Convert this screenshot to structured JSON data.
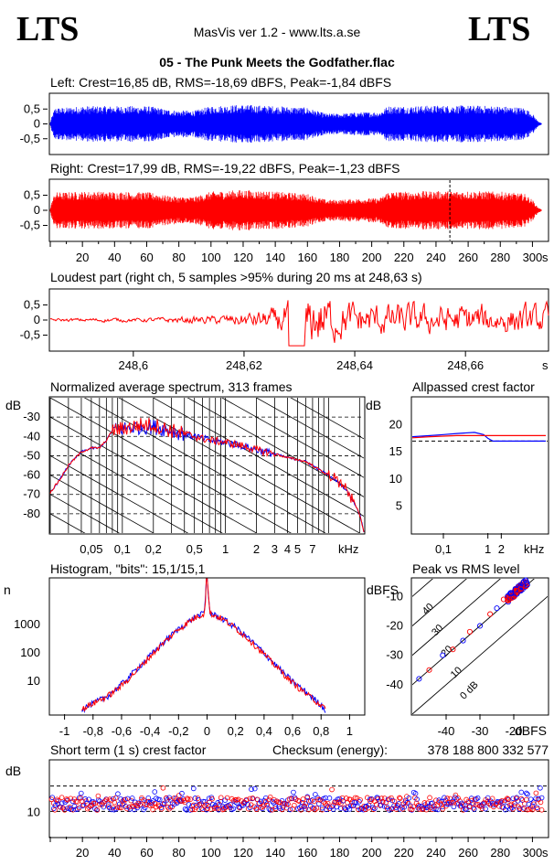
{
  "header": {
    "logo_left": "LTS",
    "logo_right": "LTS",
    "app_title": "MasVis ver 1.2 - www.lts.a.se",
    "file_title": "05 - The Punk Meets the Godfather.flac"
  },
  "colors": {
    "left": "#0000ff",
    "right": "#ff0000",
    "grid": "#000000"
  },
  "chart_data": [
    {
      "id": "left",
      "type": "line",
      "title": "Left: Crest=16,85 dB, RMS=-18,69 dBFS, Peak=-1,84 dBFS",
      "xlim": [
        0,
        310
      ],
      "ylim": [
        -1,
        1
      ],
      "y_ticks": [
        "0,5",
        "0",
        "-0,5"
      ],
      "envelope": {
        "t": [
          0,
          1,
          3,
          10,
          20,
          40,
          60,
          68,
          70,
          80,
          90,
          100,
          120,
          140,
          160,
          168,
          172,
          180,
          195,
          205,
          210,
          220,
          240,
          260,
          280,
          295,
          300,
          303,
          305,
          306
        ],
        "peak": [
          0.05,
          0.25,
          0.55,
          0.55,
          0.6,
          0.6,
          0.6,
          0.55,
          0.5,
          0.45,
          0.45,
          0.6,
          0.65,
          0.6,
          0.55,
          0.4,
          0.35,
          0.35,
          0.4,
          0.4,
          0.6,
          0.6,
          0.62,
          0.62,
          0.6,
          0.55,
          0.35,
          0.12,
          0.05,
          0.0
        ]
      }
    },
    {
      "id": "right",
      "type": "line",
      "title": "Right: Crest=17,99 dB, RMS=-19,22 dBFS, Peak=-1,23 dBFS",
      "xlim": [
        0,
        310
      ],
      "ylim": [
        -1,
        1
      ],
      "y_ticks": [
        "0,5",
        "0",
        "-0,5"
      ],
      "marker_s": 248.63,
      "x_ticks": [
        "20",
        "40",
        "60",
        "80",
        "100",
        "120",
        "140",
        "160",
        "180",
        "200",
        "220",
        "240",
        "260",
        "280",
        "300"
      ],
      "x_unit": "s",
      "envelope": {
        "t": [
          0,
          1,
          3,
          10,
          20,
          40,
          60,
          68,
          70,
          80,
          90,
          100,
          120,
          140,
          160,
          168,
          172,
          180,
          195,
          205,
          210,
          220,
          240,
          260,
          280,
          295,
          300,
          303,
          305,
          306
        ],
        "peak": [
          0.05,
          0.3,
          0.6,
          0.6,
          0.62,
          0.62,
          0.6,
          0.55,
          0.5,
          0.45,
          0.45,
          0.62,
          0.68,
          0.62,
          0.55,
          0.4,
          0.35,
          0.35,
          0.4,
          0.4,
          0.62,
          0.62,
          0.64,
          0.64,
          0.62,
          0.55,
          0.35,
          0.12,
          0.05,
          0.0
        ]
      }
    },
    {
      "id": "loudest",
      "type": "line",
      "title": "Loudest part (right ch, 5 samples >95% during 20 ms at 248,63 s)",
      "xlim": [
        248.585,
        248.675
      ],
      "ylim": [
        -1,
        1
      ],
      "y_ticks": [
        "0,5",
        "0",
        "-0,5"
      ],
      "x_tick_values": [
        248.6,
        248.62,
        248.64,
        248.66
      ],
      "x_ticks": [
        "248,6",
        "248,62",
        "248,64",
        "248,66"
      ],
      "x_unit": "s",
      "shape": {
        "t": [
          248.585,
          248.59,
          248.595,
          248.6,
          248.605,
          248.61,
          248.615,
          248.62,
          248.625,
          248.628,
          248.63,
          248.632,
          248.634,
          248.636,
          248.638,
          248.64,
          248.645,
          248.65,
          248.655,
          248.66,
          248.665,
          248.67,
          248.675
        ],
        "amp": [
          0.04,
          0.05,
          0.06,
          0.05,
          0.07,
          0.1,
          0.12,
          0.2,
          0.3,
          0.5,
          0.6,
          0.7,
          0.8,
          0.6,
          0.5,
          0.5,
          0.45,
          0.45,
          0.4,
          0.45,
          0.4,
          0.4,
          0.4
        ]
      }
    },
    {
      "id": "spectrum",
      "type": "line",
      "title": "Normalized average spectrum, 313 frames",
      "y_unit": "dB",
      "ylim": [
        -90,
        -20
      ],
      "y_ticks": [
        -30,
        -40,
        -50,
        -60,
        -70,
        -80
      ],
      "x_unit": "kHz",
      "xlim_khz": [
        0.02,
        22
      ],
      "x_tick_values": [
        0.05,
        0.1,
        0.2,
        0.5,
        1,
        2,
        3,
        4,
        5,
        7
      ],
      "x_ticks": [
        "0,05",
        "0,1",
        "0,2",
        "0,5",
        "1",
        "2",
        "3",
        "4",
        "5",
        "7"
      ],
      "series": [
        {
          "color": "#0000ff",
          "khz": [
            0.02,
            0.025,
            0.03,
            0.04,
            0.05,
            0.06,
            0.07,
            0.08,
            0.1,
            0.15,
            0.2,
            0.3,
            0.5,
            0.7,
            1,
            1.5,
            2,
            3,
            4,
            5,
            6,
            7,
            8,
            10,
            12,
            15,
            18,
            20,
            22
          ],
          "db": [
            -69,
            -62,
            -55,
            -48,
            -46,
            -46,
            -42,
            -37,
            -36,
            -35,
            -35,
            -37,
            -40,
            -42,
            -43,
            -45,
            -47,
            -49,
            -51,
            -52,
            -53,
            -55,
            -57,
            -60,
            -63,
            -68,
            -75,
            -80,
            -89
          ]
        },
        {
          "color": "#ff0000",
          "khz": [
            0.02,
            0.025,
            0.03,
            0.04,
            0.05,
            0.06,
            0.07,
            0.08,
            0.1,
            0.15,
            0.2,
            0.3,
            0.5,
            0.7,
            1,
            1.5,
            2,
            3,
            4,
            5,
            6,
            7,
            8,
            10,
            12,
            15,
            18,
            20,
            22
          ],
          "db": [
            -69,
            -62,
            -55,
            -48,
            -46,
            -46,
            -42,
            -37,
            -36,
            -34,
            -34,
            -37,
            -40,
            -42,
            -43,
            -45,
            -47,
            -49,
            -51,
            -52,
            -53,
            -55,
            -57,
            -60,
            -63,
            -68,
            -75,
            -80,
            -89
          ]
        }
      ]
    },
    {
      "id": "allpass",
      "type": "line",
      "title": "Allpassed crest factor",
      "y_unit": "dB",
      "ylim": [
        0,
        25
      ],
      "y_ticks": [
        20,
        15,
        10,
        5
      ],
      "x_unit": "kHz",
      "x_tick_values": [
        0.1,
        1,
        2
      ],
      "x_ticks": [
        "0,1",
        "1",
        "2"
      ],
      "left_ref": 17.0,
      "series": [
        {
          "color": "#0000ff",
          "khz": [
            0.02,
            0.05,
            0.1,
            0.2,
            0.5,
            0.8,
            1.0,
            1.3,
            2,
            5,
            10,
            20
          ],
          "db": [
            17.8,
            18.0,
            18.2,
            18.4,
            18.6,
            18.2,
            17.5,
            17.0,
            17.0,
            17.0,
            17.0,
            17.0
          ]
        },
        {
          "color": "#ff0000",
          "khz": [
            0.02,
            0.05,
            0.1,
            0.2,
            0.5,
            1,
            2,
            5,
            10,
            20
          ],
          "db": [
            17.6,
            17.8,
            17.9,
            18.0,
            18.0,
            18.0,
            18.0,
            18.0,
            18.0,
            18.0
          ]
        }
      ]
    },
    {
      "id": "histogram",
      "type": "line",
      "title": "Histogram, \"bits\": 15,1/15,1",
      "y_unit": "n",
      "y_scale": "log",
      "y_tick_values": [
        1000,
        100,
        10
      ],
      "y_ticks": [
        "1000",
        "100",
        "10"
      ],
      "xlim": [
        -1.1,
        1.1
      ],
      "x_tick_values": [
        -1,
        -0.8,
        -0.6,
        -0.4,
        -0.2,
        0,
        0.2,
        0.4,
        0.6,
        0.8,
        1
      ],
      "x_ticks": [
        "-1",
        "-0,8",
        "-0,6",
        "-0,4",
        "-0,2",
        "0",
        "0,2",
        "0,4",
        "0,6",
        "0,8",
        "1"
      ],
      "series": [
        {
          "color": "#0000ff",
          "x": [
            -0.88,
            -0.82,
            -0.7,
            -0.6,
            -0.5,
            -0.4,
            -0.3,
            -0.2,
            -0.1,
            -0.02,
            0,
            0.02,
            0.1,
            0.2,
            0.3,
            0.4,
            0.5,
            0.6,
            0.7,
            0.8,
            0.83
          ],
          "n": [
            1,
            1.5,
            3,
            8,
            25,
            80,
            250,
            700,
            1600,
            2500,
            40000,
            2500,
            1700,
            800,
            300,
            100,
            30,
            10,
            4,
            1.5,
            1
          ]
        },
        {
          "color": "#ff0000",
          "x": [
            -0.88,
            -0.82,
            -0.7,
            -0.6,
            -0.5,
            -0.4,
            -0.3,
            -0.2,
            -0.1,
            -0.02,
            0,
            0.02,
            0.1,
            0.2,
            0.3,
            0.4,
            0.5,
            0.6,
            0.7,
            0.8,
            0.83
          ],
          "n": [
            1,
            1.5,
            3,
            7,
            22,
            75,
            240,
            680,
            1550,
            2450,
            40000,
            2450,
            1650,
            750,
            280,
            90,
            28,
            9,
            3.5,
            1.5,
            1
          ]
        }
      ]
    },
    {
      "id": "peak_vs_rms",
      "type": "scatter",
      "title": "Peak vs RMS level",
      "y_unit": "dBFS",
      "x_unit": "dBFS",
      "xlim": [
        -50,
        -10
      ],
      "ylim": [
        -50,
        -4
      ],
      "x_ticks": [
        -40,
        -30,
        -20
      ],
      "y_ticks": [
        -10,
        -20,
        -30,
        -40
      ],
      "crest_lines": [
        {
          "label": "40",
          "crest_db": 40
        },
        {
          "label": "30",
          "crest_db": 30
        },
        {
          "label": "20",
          "crest_db": 20
        },
        {
          "label": "10",
          "crest_db": 10
        },
        {
          "label": "0 dB",
          "crest_db": 0
        }
      ],
      "cluster": {
        "rms_center": -19,
        "peak_center": -7,
        "rms_spread": 3,
        "peak_spread": 3
      },
      "tail": [
        [
          -48,
          -38
        ],
        [
          -45,
          -35
        ],
        [
          -41,
          -30
        ],
        [
          -38,
          -28
        ],
        [
          -35,
          -25
        ],
        [
          -33,
          -22
        ],
        [
          -30,
          -20
        ],
        [
          -27,
          -16
        ],
        [
          -25,
          -14
        ],
        [
          -23,
          -11
        ]
      ]
    },
    {
      "id": "short_term_crest",
      "type": "scatter",
      "title": "Short term (1 s) crest factor",
      "y_unit": "dB",
      "ylim": [
        0,
        30
      ],
      "y_tick_values": [
        10
      ],
      "y_ticks": [
        "10"
      ],
      "ref_lines_db": [
        20,
        10
      ],
      "xlim": [
        0,
        310
      ],
      "x_ticks": [
        "20",
        "40",
        "60",
        "80",
        "100",
        "120",
        "140",
        "160",
        "180",
        "200",
        "220",
        "240",
        "260",
        "280",
        "300"
      ],
      "x_unit": "s",
      "mean_db": 13,
      "spread_db": 2.5
    }
  ],
  "checksum": {
    "label": "Checksum (energy):",
    "value": "378 188 800 332 577"
  }
}
